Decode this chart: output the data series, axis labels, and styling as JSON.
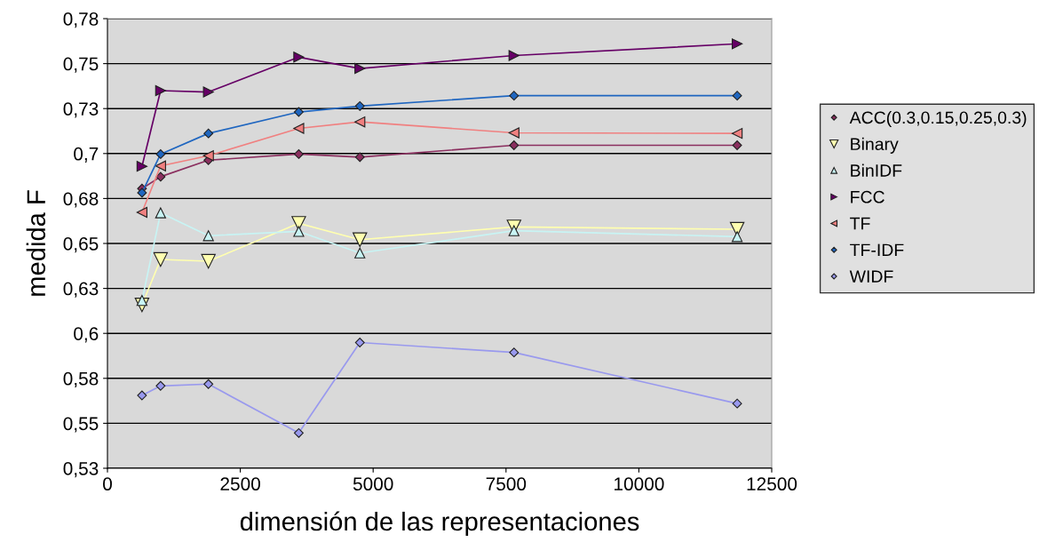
{
  "chart_data": {
    "type": "line",
    "xlabel": "dimensión de las representaciones",
    "ylabel": "medida F",
    "x": [
      650,
      1000,
      1900,
      3600,
      4750,
      7650,
      11850
    ],
    "series": [
      {
        "name": "ACC(0.3,0.15,0.25,0.3)",
        "color": "#8b2f5f",
        "marker": "diamond",
        "values": [
          0.6805,
          0.6871,
          0.6963,
          0.6997,
          0.698,
          0.7046,
          0.7046
        ]
      },
      {
        "name": "Binary",
        "color": "#ffffb0",
        "marker": "triangle_down",
        "values": [
          0.6158,
          0.6411,
          0.6401,
          0.6612,
          0.6521,
          0.6592,
          0.6579
        ]
      },
      {
        "name": "BinIDF",
        "color": "#c8f4f4",
        "marker": "triangle",
        "values": [
          0.6183,
          0.667,
          0.6543,
          0.6567,
          0.6447,
          0.6571,
          0.6538
        ]
      },
      {
        "name": "FCC",
        "color": "#660066",
        "marker": "triangle_right",
        "values": [
          0.6929,
          0.735,
          0.7342,
          0.7536,
          0.7473,
          0.7545,
          0.761
        ]
      },
      {
        "name": "TF",
        "color": "#f08080",
        "marker": "triangle_left",
        "values": [
          0.6673,
          0.6931,
          0.6988,
          0.714,
          0.7176,
          0.7115,
          0.7112
        ]
      },
      {
        "name": "TF-IDF",
        "color": "#1f66c0",
        "marker": "diamond",
        "values": [
          0.6782,
          0.6997,
          0.7112,
          0.7231,
          0.7264,
          0.7322,
          0.7322
        ]
      },
      {
        "name": "WIDF",
        "color": "#9999ee",
        "marker": "diamond",
        "values": [
          0.5655,
          0.5708,
          0.5718,
          0.5446,
          0.5949,
          0.5894,
          0.561
        ]
      }
    ],
    "xlim": [
      0,
      12500
    ],
    "xticks": [
      0,
      2500,
      5000,
      7500,
      10000,
      12500
    ],
    "ylim": [
      0.525,
      0.775
    ],
    "yticks": [
      {
        "value": 0.525,
        "label": "0,53"
      },
      {
        "value": 0.55,
        "label": "0,55"
      },
      {
        "value": 0.575,
        "label": "0,58"
      },
      {
        "value": 0.6,
        "label": "0,6"
      },
      {
        "value": 0.625,
        "label": "0,63"
      },
      {
        "value": 0.65,
        "label": "0,65"
      },
      {
        "value": 0.675,
        "label": "0,68"
      },
      {
        "value": 0.7,
        "label": "0,7"
      },
      {
        "value": 0.725,
        "label": "0,73"
      },
      {
        "value": 0.75,
        "label": "0,75"
      },
      {
        "value": 0.775,
        "label": "0,78"
      }
    ],
    "grid": "y",
    "legend": "right"
  }
}
